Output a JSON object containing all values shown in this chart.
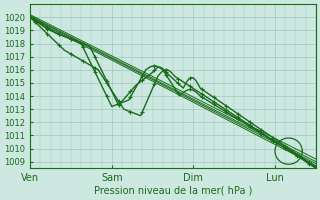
{
  "bg_color": "#cce8e0",
  "grid_color": "#a0c8be",
  "line_color": "#1a6b1a",
  "ylabel_text": "Pression niveau de la mer( hPa )",
  "x_ticks": [
    0,
    48,
    96,
    144
  ],
  "x_tick_labels": [
    "Ven",
    "Sam",
    "Dim",
    "Lun"
  ],
  "ylim": [
    1008.5,
    1021.0
  ],
  "xlim": [
    0,
    168
  ],
  "yticks": [
    1009,
    1010,
    1011,
    1012,
    1013,
    1014,
    1015,
    1016,
    1017,
    1018,
    1019,
    1020
  ],
  "figsize": [
    3.2,
    2.0
  ],
  "dpi": 100
}
